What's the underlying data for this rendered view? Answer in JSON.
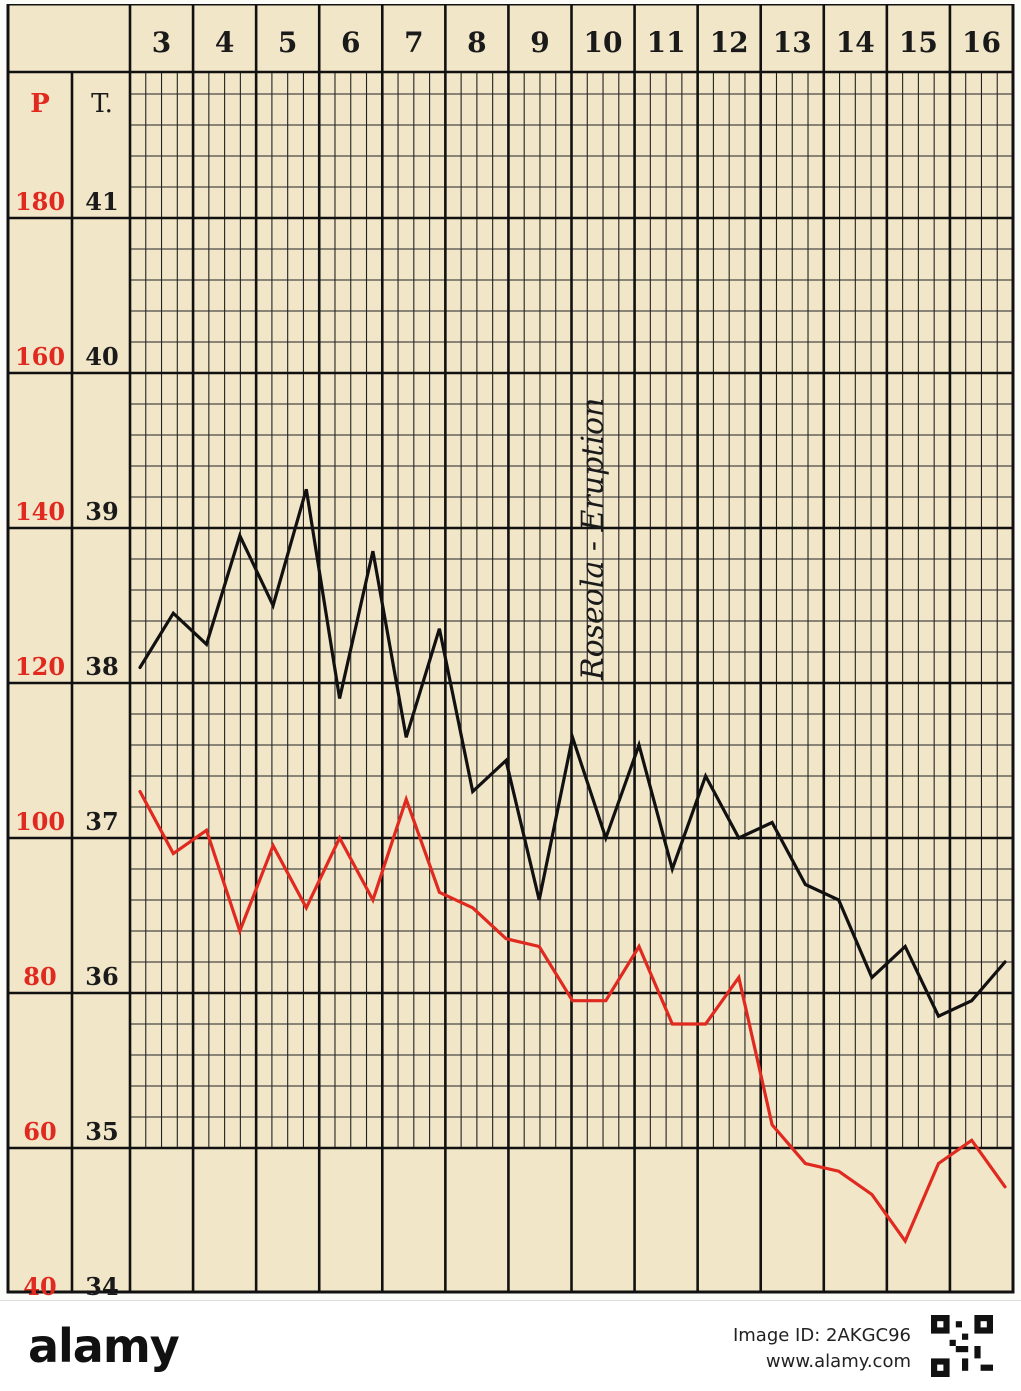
{
  "chart_data": {
    "type": "line",
    "x_ticks": [
      "3",
      "4",
      "5",
      "6",
      "7",
      "8",
      "9",
      "10",
      "11",
      "12",
      "13",
      "14",
      "15",
      "16"
    ],
    "left_axis_labels": {
      "pulse_header": "P",
      "temp_header": "T."
    },
    "pulse_ticks": [
      "180",
      "160",
      "140",
      "120",
      "100",
      "80",
      "60",
      "40"
    ],
    "temp_ticks": [
      "41",
      "40",
      "39",
      "38",
      "37",
      "36",
      "35",
      "34"
    ],
    "annotation": {
      "text": "Roseola - Eruption",
      "x_day": 9.8
    },
    "series": [
      {
        "color": "#111111",
        "axis": "temperature",
        "x": [
          3,
          3.5,
          4,
          4.5,
          5,
          5.5,
          6,
          6.5,
          7,
          7.5,
          8,
          8.5,
          9,
          9.5,
          10,
          10.5,
          11,
          11.5,
          12,
          12.5,
          13,
          13.5,
          14,
          14.5,
          15,
          15.5,
          16
        ],
        "values": [
          38.1,
          38.45,
          38.25,
          38.95,
          38.5,
          39.25,
          37.9,
          38.85,
          37.65,
          38.35,
          37.3,
          37.5,
          36.6,
          37.65,
          37.0,
          37.6,
          36.8,
          37.4,
          37.0,
          37.1,
          36.7,
          36.6,
          36.1,
          36.3,
          35.85,
          35.95,
          36.2
        ]
      },
      {
        "color": "#e0291f",
        "axis": "pulse",
        "x": [
          3,
          3.5,
          4,
          4.5,
          5,
          5.5,
          6,
          6.5,
          7,
          7.5,
          8,
          8.5,
          9,
          9.5,
          10,
          10.5,
          11,
          11.5,
          12,
          12.5,
          13,
          13.5,
          14,
          14.5,
          15,
          15.5,
          16
        ],
        "values": [
          106,
          98,
          101,
          88,
          99,
          91,
          100,
          92,
          105,
          93,
          91,
          87,
          86,
          79,
          79,
          86,
          76,
          76,
          82,
          63,
          58,
          57,
          54,
          48,
          58,
          61,
          55
        ]
      }
    ],
    "temp_ylim": [
      34,
      41.8
    ],
    "pulse_ylim": [
      40,
      196
    ],
    "grid": true
  },
  "watermark": {
    "logo": "alamy",
    "image_id": "Image ID: 2AKGC96",
    "url": "www.alamy.com"
  }
}
